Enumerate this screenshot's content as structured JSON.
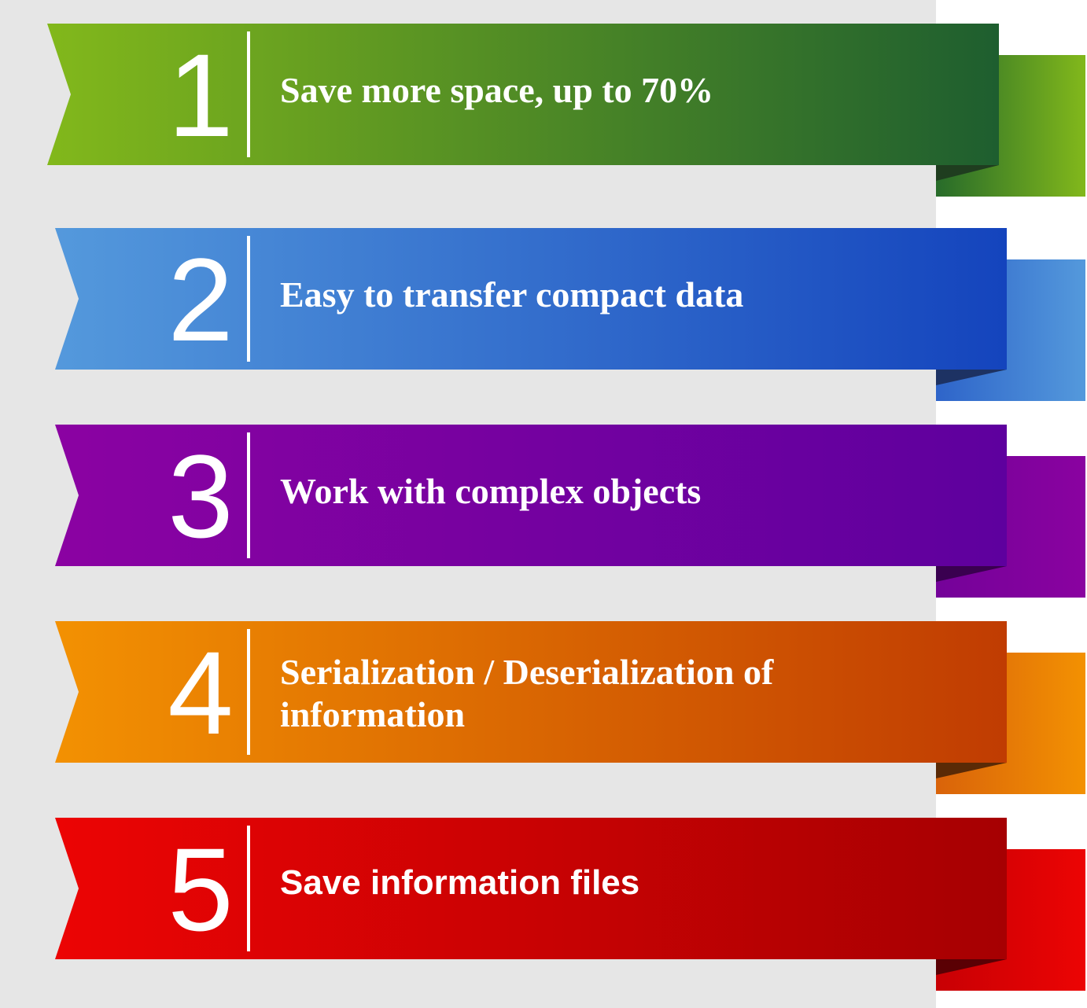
{
  "items": [
    {
      "number": "1",
      "label": "Save more space, up to 70%",
      "colors": {
        "start": "#82b81b",
        "end": "#1e5e2f",
        "tail_start": "#276b2a",
        "tail_end": "#82b81b",
        "fold": "#1f3d1f"
      }
    },
    {
      "number": "2",
      "label": "Easy to transfer compact data",
      "colors": {
        "start": "#5499dc",
        "end": "#1444bd",
        "tail_start": "#2e64c9",
        "tail_end": "#5499dc",
        "fold": "#1d3263"
      }
    },
    {
      "number": "3",
      "label": "Work with complex objects",
      "colors": {
        "start": "#8b02a2",
        "end": "#5e009e",
        "tail_start": "#740299",
        "tail_end": "#8a02a0",
        "fold": "#3a0050"
      }
    },
    {
      "number": "4",
      "label": "Serialization / Deserialization of information",
      "colors": {
        "start": "#f39102",
        "end": "#c03c02",
        "tail_start": "#d9630a",
        "tail_end": "#f39102",
        "fold": "#5a2a06"
      }
    },
    {
      "number": "5",
      "label": "Save information files",
      "colors": {
        "start": "#ec0404",
        "end": "#a60002",
        "tail_start": "#c80004",
        "tail_end": "#ec0404",
        "fold": "#5a0004"
      }
    }
  ]
}
